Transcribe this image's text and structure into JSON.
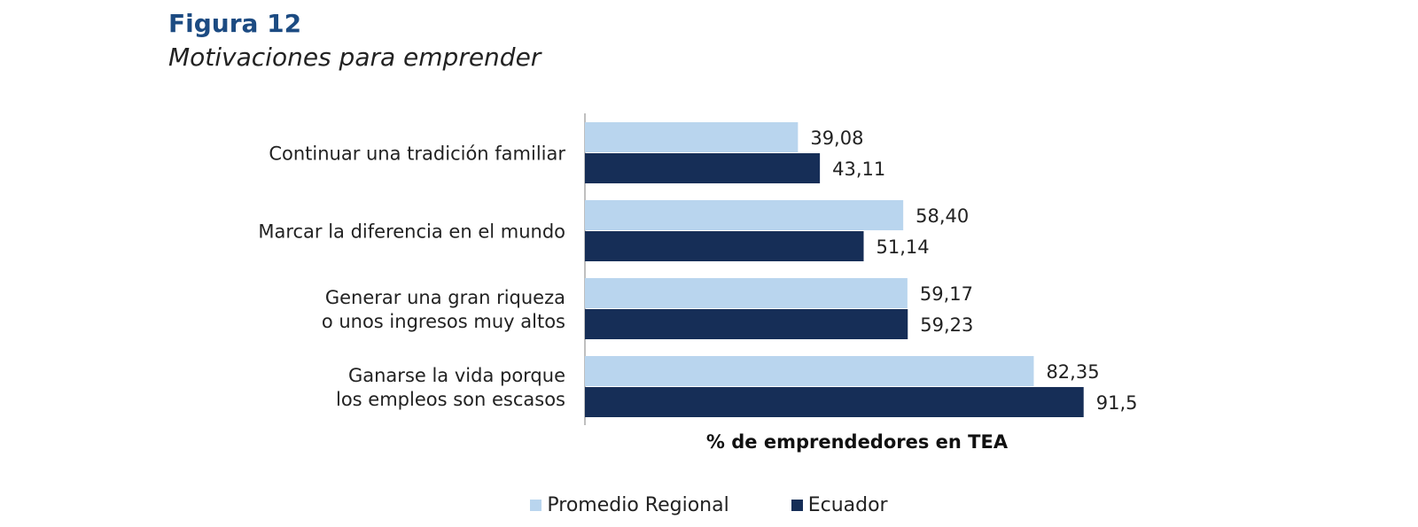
{
  "figure": {
    "title": "Figura 12",
    "subtitle": "Motivaciones para emprender"
  },
  "colors": {
    "title": "#1c4b82",
    "promedio_regional": "#b9d5ee",
    "ecuador": "#162e57",
    "axis": "#bfbfbf",
    "text": "#222222"
  },
  "legend": {
    "placement": "bottom-center",
    "items": [
      {
        "label": "Promedio Regional",
        "color": "#b9d5ee"
      },
      {
        "label": "Ecuador",
        "color": "#162e57"
      }
    ]
  },
  "chart_data": {
    "type": "bar",
    "orientation": "horizontal",
    "title": "",
    "xlabel": "% de emprendedores en TEA",
    "ylabel": "",
    "xlim": [
      0,
      100
    ],
    "grid": false,
    "categories": [
      [
        "Continuar una tradición familiar"
      ],
      [
        "Marcar la diferencia en el mundo"
      ],
      [
        "Generar una gran riqueza",
        "o unos ingresos muy altos"
      ],
      [
        "Ganarse la vida porque",
        "los empleos son escasos"
      ]
    ],
    "series": [
      {
        "name": "Promedio Regional",
        "color": "#b9d5ee",
        "values": [
          39.08,
          58.4,
          59.17,
          82.35
        ],
        "labels": [
          "39,08",
          "58,40",
          "59,17",
          "82,35"
        ]
      },
      {
        "name": "Ecuador",
        "color": "#162e57",
        "values": [
          43.11,
          51.14,
          59.23,
          91.5
        ],
        "labels": [
          "43,11",
          "51,14",
          "59,23",
          "91,5"
        ]
      }
    ]
  }
}
